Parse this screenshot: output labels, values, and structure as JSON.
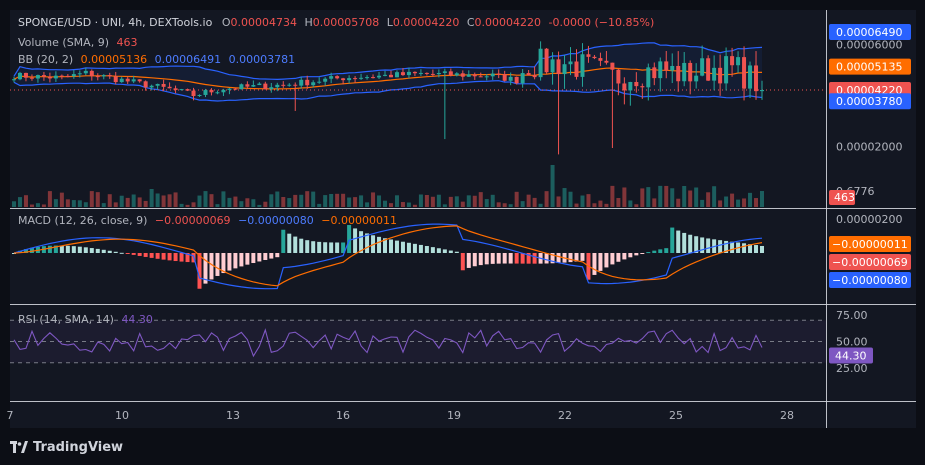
{
  "header": {
    "symbol": "SPONGE/USD · UNI, 4h, DEXTools.io",
    "o_label": "O",
    "o": "0.00004734",
    "h_label": "H",
    "h": "0.00005708",
    "l_label": "L",
    "l": "0.00004220",
    "c_label": "C",
    "c": "0.00004220",
    "change": "-0.0000 (−10.85%)"
  },
  "volume_legend": {
    "label": "Volume (SMA, 9)",
    "value": "463"
  },
  "bb_legend": {
    "label": "BB (20, 2)",
    "basis": "0.00005136",
    "upper": "0.00006491",
    "lower": "0.00003781"
  },
  "macd_legend": {
    "label": "MACD (12, 26, close, 9)",
    "hist": "−0.00000069",
    "macd": "−0.00000080",
    "signal": "−0.00000011"
  },
  "rsi_legend": {
    "label": "RSI (14, SMA, 14)",
    "value": "44.30"
  },
  "footer": {
    "brand": "TradingView"
  },
  "colors": {
    "background": "#131722",
    "up": "#26a69a",
    "down": "#ef5350",
    "bb_band": "#2962ff",
    "bb_basis": "#ff6d00",
    "macd_line": "#2962ff",
    "signal_line": "#ff6d00",
    "rsi_line": "#7e57c2",
    "text": "#b2b5be"
  },
  "chart_data": {
    "type": "candlestick",
    "x_tick_labels": [
      "7",
      "10",
      "13",
      "16",
      "19",
      "22",
      "25",
      "28"
    ],
    "price_axis": {
      "ticks": [
        "0.00006000",
        "0.00002000"
      ],
      "tick_values": [
        6e-05,
        2e-05
      ],
      "badges": [
        {
          "text": "0.00006490",
          "value": 6.49e-05,
          "color": "#2962ff"
        },
        {
          "text": "0.00005135",
          "value": 5.135e-05,
          "color": "#ff6d00"
        },
        {
          "text": "0.00004220",
          "value": 4.22e-05,
          "color": "#ef5350"
        },
        {
          "text": "0.00003780",
          "value": 3.78e-05,
          "color": "#2962ff"
        }
      ],
      "volume_tick": "0.6776",
      "volume_badge": {
        "text": "463",
        "color": "#ef5350"
      }
    },
    "macd_axis": {
      "ticks": [
        "0.00000200"
      ],
      "tick_values": [
        2e-06
      ],
      "badges": [
        {
          "text": "−0.00000011",
          "value": -1.1e-07,
          "color": "#ff6d00"
        },
        {
          "text": "−0.00000069",
          "value": -6.9e-07,
          "color": "#ef5350"
        },
        {
          "text": "−0.00000080",
          "value": -8e-07,
          "color": "#2962ff"
        }
      ]
    },
    "rsi_axis": {
      "ticks": [
        "75.00",
        "50.00",
        "25.00"
      ],
      "tick_values": [
        75,
        50,
        25
      ],
      "badge": {
        "text": "44.30",
        "value": 44.3,
        "color": "#7e57c2"
      }
    }
  }
}
